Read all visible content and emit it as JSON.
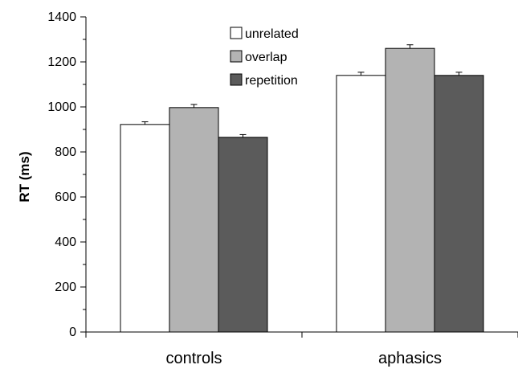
{
  "chart_data": {
    "type": "bar",
    "categories": [
      "controls",
      "aphasics"
    ],
    "series": [
      {
        "name": "unrelated",
        "color": "#ffffff",
        "values": [
          922,
          1140
        ],
        "errors": [
          12,
          14
        ]
      },
      {
        "name": "overlap",
        "color": "#b3b3b3",
        "values": [
          997,
          1260
        ],
        "errors": [
          14,
          16
        ]
      },
      {
        "name": "repetition",
        "color": "#5b5b5b",
        "values": [
          865,
          1140
        ],
        "errors": [
          12,
          14
        ]
      }
    ],
    "title": "",
    "xlabel": "",
    "ylabel": "RT (ms)",
    "ylim": [
      0,
      1400
    ],
    "yticks": [
      0,
      200,
      400,
      600,
      800,
      1000,
      1200,
      1400
    ],
    "grid": false,
    "error_bars": true,
    "legend_position": "top-center"
  }
}
